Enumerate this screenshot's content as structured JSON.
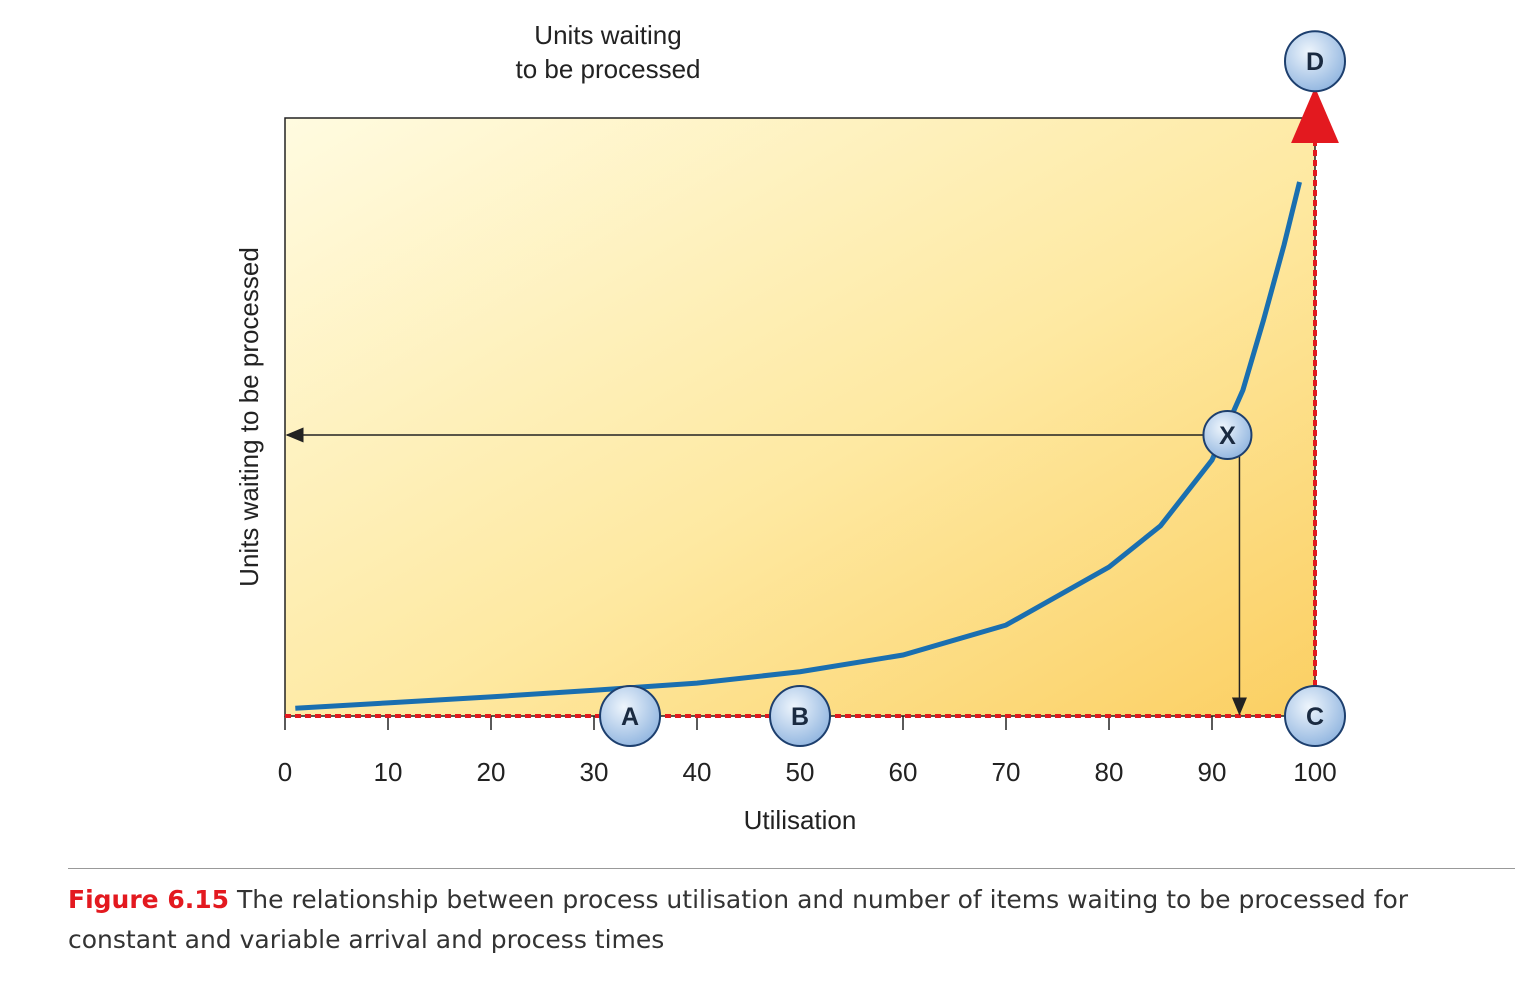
{
  "chart_data": {
    "type": "line",
    "top_label": [
      "Units waiting",
      "to be processed"
    ],
    "y_label": "Units waiting to be processed",
    "x_label": "Utilisation",
    "xlim": [
      0,
      100
    ],
    "xticks": [
      0,
      10,
      20,
      30,
      40,
      50,
      60,
      70,
      80,
      90,
      100
    ],
    "ylim": [
      0,
      100
    ],
    "series": [
      {
        "color": "#1a6fb0",
        "x": [
          1,
          10,
          20,
          30,
          40,
          50,
          60,
          70,
          80,
          85,
          90,
          93,
          95,
          97,
          98.5
        ],
        "values": [
          1.3,
          2.2,
          3.2,
          4.3,
          5.5,
          7.4,
          10.2,
          15.2,
          24.9,
          31.8,
          42.8,
          54.5,
          66.2,
          78.8,
          89.3
        ]
      }
    ],
    "points": [
      {
        "label": "A",
        "x": 33.5,
        "y": 0
      },
      {
        "label": "B",
        "x": 50,
        "y": 0
      },
      {
        "label": "C",
        "x": 100,
        "y": 0
      },
      {
        "label": "D",
        "x": 100,
        "y": 109.5
      },
      {
        "label": "X",
        "x": 91.5,
        "y": 47
      }
    ],
    "caption": {
      "figure": "Figure 6.15",
      "text": "The relationship between process utilisation and number of items waiting to be processed for constant and variable arrival and process times"
    }
  }
}
